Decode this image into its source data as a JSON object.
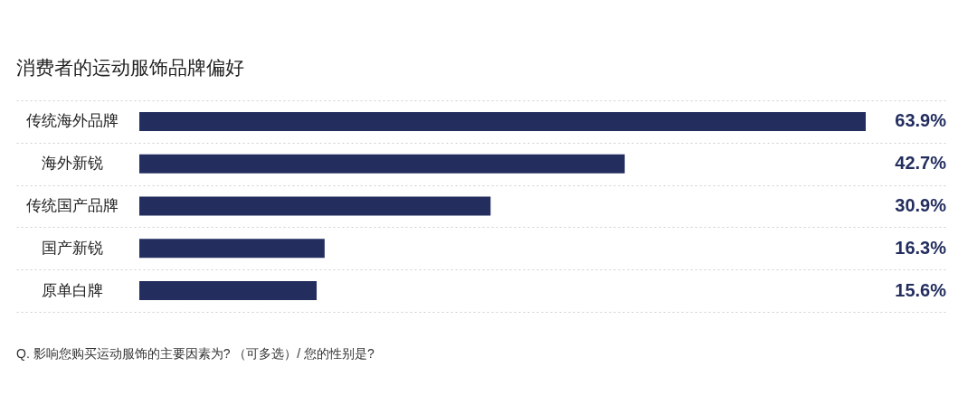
{
  "chart_data": {
    "type": "bar",
    "orientation": "horizontal",
    "title": "消费者的运动服饰品牌偏好",
    "categories": [
      "传统海外品牌",
      "海外新锐",
      "传统国产品牌",
      "国产新锐",
      "原单白牌"
    ],
    "values": [
      63.9,
      42.7,
      30.9,
      16.3,
      15.6
    ],
    "value_labels": [
      "63.9%",
      "42.7%",
      "30.9%",
      "16.3%",
      "15.6%"
    ],
    "color": "#232e5f",
    "grid": "y",
    "annotations": [
      "Q. 影响您购买运动服饰的主要因素为? （可多选）/ 您的性别是?"
    ]
  }
}
